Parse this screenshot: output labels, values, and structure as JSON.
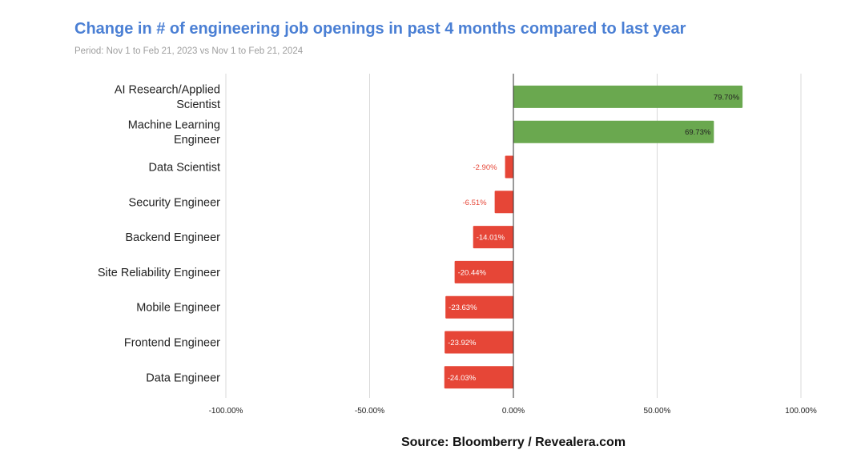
{
  "chart_data": {
    "type": "bar",
    "orientation": "horizontal",
    "title": "Change in # of engineering job openings in past 4 months compared to last year",
    "subtitle": "Period: Nov 1 to Feb 21, 2023 vs Nov 1 to Feb 21, 2024",
    "source": "Source: Bloomberry / Revealera.com",
    "xlim": [
      -100,
      100
    ],
    "ticks": [
      -100,
      -50,
      0,
      50,
      100
    ],
    "tick_labels": [
      "-100.00%",
      "-50.00%",
      "0.00%",
      "50.00%",
      "100.00%"
    ],
    "categories": [
      [
        "AI Research/Applied",
        "Scientist"
      ],
      [
        "Machine Learning",
        "Engineer"
      ],
      [
        "Data Scientist"
      ],
      [
        "Security Engineer"
      ],
      [
        "Backend Engineer"
      ],
      [
        "Site Reliability Engineer"
      ],
      [
        "Mobile Engineer"
      ],
      [
        "Frontend Engineer"
      ],
      [
        "Data Engineer"
      ]
    ],
    "values": [
      79.7,
      69.73,
      -2.9,
      -6.51,
      -14.01,
      -20.44,
      -23.63,
      -23.92,
      -24.03
    ],
    "value_labels": [
      "79.70%",
      "69.73%",
      "-2.90%",
      "-6.51%",
      "-14.01%",
      "-20.44%",
      "-23.63%",
      "-23.92%",
      "-24.03%"
    ],
    "colors": {
      "positive": "#6aa84f",
      "negative": "#e64637",
      "grid": "#d9d9d9",
      "axis": "#333333"
    },
    "grid": true
  }
}
